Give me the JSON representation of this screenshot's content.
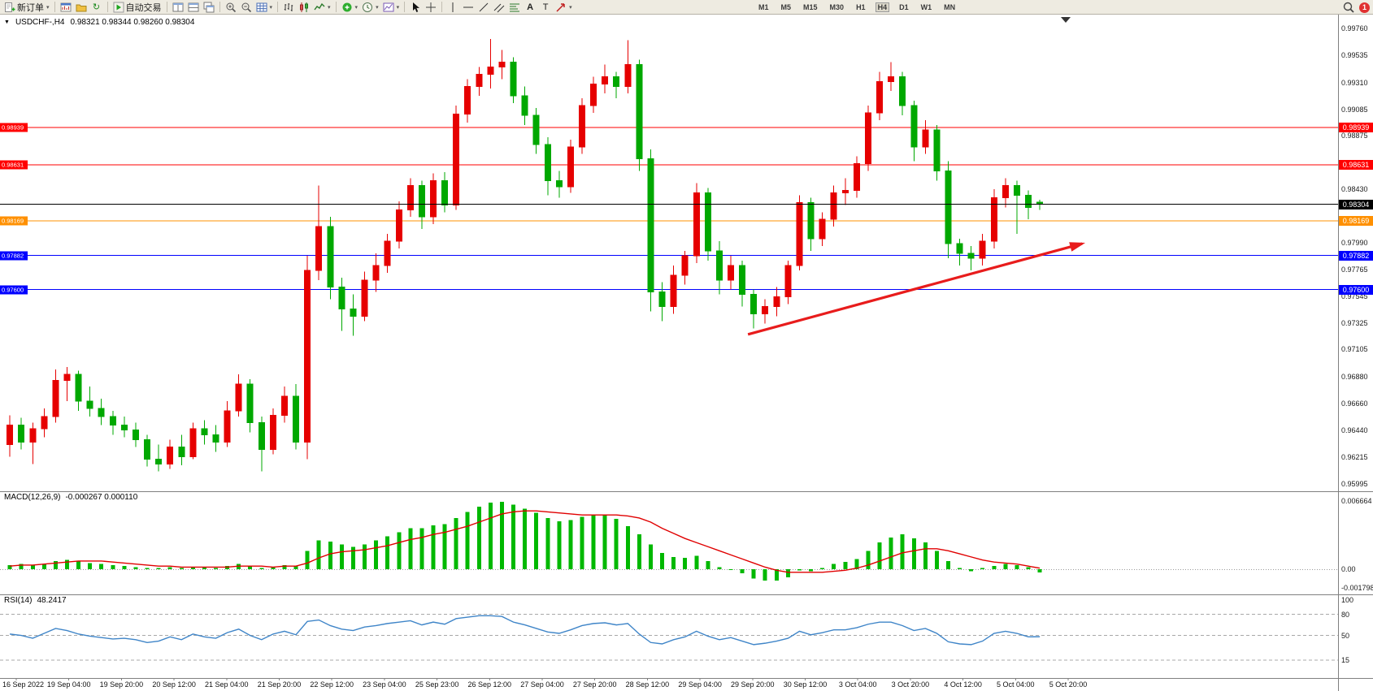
{
  "toolbar": {
    "groups": [
      {
        "items": [
          {
            "name": "new-order-button",
            "icon": "new-order",
            "label": "新订单",
            "dropdown": true
          }
        ]
      },
      {
        "items": [
          {
            "name": "chart-window-button",
            "icon": "chart-window"
          },
          {
            "name": "profiles-button",
            "icon": "folder"
          },
          {
            "name": "refresh-button",
            "icon": "cycle"
          }
        ]
      },
      {
        "items": [
          {
            "name": "autotrading-button",
            "icon": "play",
            "label": "自动交易"
          }
        ]
      },
      {
        "items": [
          {
            "name": "tile-horizontal-button",
            "icon": "tile-h"
          },
          {
            "name": "tile-vertical-button",
            "icon": "tile-v"
          },
          {
            "name": "cascade-windows-button",
            "icon": "cascade"
          }
        ]
      },
      {
        "items": [
          {
            "name": "zoom-in-button",
            "icon": "zoom-in"
          },
          {
            "name": "zoom-out-button",
            "icon": "zoom-out"
          },
          {
            "name": "data-window-button",
            "icon": "grid",
            "dropdown": true
          }
        ]
      },
      {
        "items": [
          {
            "name": "bar-chart-button",
            "icon": "bars"
          },
          {
            "name": "candlestick-chart-button",
            "icon": "candles"
          },
          {
            "name": "line-chart-button",
            "icon": "linechart",
            "dropdown": true
          }
        ]
      },
      {
        "items": [
          {
            "name": "indicators-button",
            "icon": "indicator",
            "dropdown": true
          },
          {
            "name": "periods-button",
            "icon": "clock",
            "dropdown": true
          },
          {
            "name": "templates-button",
            "icon": "template",
            "dropdown": true
          }
        ]
      },
      {
        "items": [
          {
            "name": "cursor-button",
            "icon": "cursor"
          },
          {
            "name": "crosshair-button",
            "icon": "crosshair"
          }
        ]
      },
      {
        "items": [
          {
            "name": "vertical-line-button",
            "icon": "vline"
          },
          {
            "name": "horizontal-line-button",
            "icon": "hline"
          },
          {
            "name": "trendline-button",
            "icon": "trendline"
          },
          {
            "name": "channel-button",
            "icon": "channel"
          },
          {
            "name": "fibonacci-button",
            "icon": "fibo"
          },
          {
            "name": "text-button",
            "icon": "text-a"
          },
          {
            "name": "label-button",
            "icon": "text-t"
          },
          {
            "name": "arrows-button",
            "icon": "arrow",
            "dropdown": true
          }
        ]
      }
    ],
    "timeframes": [
      {
        "label": "M1"
      },
      {
        "label": "M5"
      },
      {
        "label": "M15"
      },
      {
        "label": "M30"
      },
      {
        "label": "H1"
      },
      {
        "label": "H4"
      },
      {
        "label": "D1"
      },
      {
        "label": "W1"
      },
      {
        "label": "MN"
      }
    ],
    "active_timeframe": "H4",
    "right": {
      "search_icon": "search",
      "badge": "1"
    }
  },
  "chart": {
    "title": "USDCHF-,H4",
    "ohlc_text": "0.98321 0.98344 0.98260 0.98304"
  },
  "chart_data": {
    "type": "candlestick",
    "symbol": "USDCHF",
    "period": "H4",
    "bull_color": "#e60000",
    "bear_color": "#00a800",
    "candles": [
      [
        0.9632,
        0.9656,
        0.9622,
        0.9648
      ],
      [
        0.9648,
        0.9654,
        0.9628,
        0.9634
      ],
      [
        0.9634,
        0.965,
        0.9616,
        0.9645
      ],
      [
        0.9645,
        0.9662,
        0.9638,
        0.9655
      ],
      [
        0.9655,
        0.9694,
        0.965,
        0.9685
      ],
      [
        0.9685,
        0.9696,
        0.9668,
        0.969
      ],
      [
        0.969,
        0.9693,
        0.966,
        0.9668
      ],
      [
        0.9668,
        0.968,
        0.9655,
        0.9662
      ],
      [
        0.9662,
        0.967,
        0.9648,
        0.9655
      ],
      [
        0.9655,
        0.966,
        0.964,
        0.9648
      ],
      [
        0.9648,
        0.9655,
        0.9638,
        0.9644
      ],
      [
        0.9644,
        0.965,
        0.963,
        0.9636
      ],
      [
        0.9636,
        0.964,
        0.9614,
        0.962
      ],
      [
        0.962,
        0.9632,
        0.961,
        0.9616
      ],
      [
        0.9616,
        0.9636,
        0.9612,
        0.963
      ],
      [
        0.963,
        0.964,
        0.9615,
        0.9622
      ],
      [
        0.9622,
        0.965,
        0.962,
        0.9645
      ],
      [
        0.9645,
        0.9652,
        0.9632,
        0.964
      ],
      [
        0.964,
        0.9648,
        0.9626,
        0.9634
      ],
      [
        0.9634,
        0.9668,
        0.963,
        0.966
      ],
      [
        0.966,
        0.969,
        0.9655,
        0.9682
      ],
      [
        0.9682,
        0.9686,
        0.9642,
        0.965
      ],
      [
        0.965,
        0.9655,
        0.961,
        0.9628
      ],
      [
        0.9628,
        0.9662,
        0.9624,
        0.9656
      ],
      [
        0.9656,
        0.968,
        0.965,
        0.9672
      ],
      [
        0.9672,
        0.9682,
        0.9628,
        0.9634
      ],
      [
        0.9634,
        0.9788,
        0.962,
        0.9776
      ],
      [
        0.9776,
        0.9846,
        0.9768,
        0.9812
      ],
      [
        0.9812,
        0.982,
        0.9752,
        0.9762
      ],
      [
        0.9762,
        0.977,
        0.9726,
        0.9744
      ],
      [
        0.9744,
        0.9756,
        0.9722,
        0.9738
      ],
      [
        0.9738,
        0.9775,
        0.9734,
        0.9768
      ],
      [
        0.9768,
        0.979,
        0.9758,
        0.978
      ],
      [
        0.978,
        0.9806,
        0.9774,
        0.98
      ],
      [
        0.98,
        0.9833,
        0.9794,
        0.9826
      ],
      [
        0.9826,
        0.9852,
        0.982,
        0.9846
      ],
      [
        0.9846,
        0.985,
        0.981,
        0.982
      ],
      [
        0.982,
        0.9856,
        0.9814,
        0.985
      ],
      [
        0.985,
        0.9857,
        0.9824,
        0.983
      ],
      [
        0.983,
        0.9912,
        0.9826,
        0.9905
      ],
      [
        0.9905,
        0.9934,
        0.9898,
        0.9928
      ],
      [
        0.9928,
        0.9944,
        0.992,
        0.9938
      ],
      [
        0.9938,
        0.9967,
        0.9926,
        0.9944
      ],
      [
        0.9944,
        0.9958,
        0.9934,
        0.9948
      ],
      [
        0.9948,
        0.9952,
        0.9914,
        0.992
      ],
      [
        0.992,
        0.9928,
        0.9896,
        0.9904
      ],
      [
        0.9904,
        0.991,
        0.9872,
        0.988
      ],
      [
        0.988,
        0.9886,
        0.9838,
        0.985
      ],
      [
        0.985,
        0.9858,
        0.9836,
        0.9845
      ],
      [
        0.9845,
        0.9884,
        0.984,
        0.9878
      ],
      [
        0.9878,
        0.9918,
        0.9872,
        0.9912
      ],
      [
        0.9912,
        0.9936,
        0.9906,
        0.993
      ],
      [
        0.993,
        0.9946,
        0.9922,
        0.9936
      ],
      [
        0.9936,
        0.994,
        0.9918,
        0.9928
      ],
      [
        0.9928,
        0.9966,
        0.9922,
        0.9946
      ],
      [
        0.9946,
        0.995,
        0.9858,
        0.9868
      ],
      [
        0.9868,
        0.9876,
        0.9742,
        0.9758
      ],
      [
        0.9758,
        0.9766,
        0.9734,
        0.9746
      ],
      [
        0.9746,
        0.978,
        0.974,
        0.9772
      ],
      [
        0.9772,
        0.9792,
        0.9764,
        0.9788
      ],
      [
        0.9788,
        0.9848,
        0.9782,
        0.984
      ],
      [
        0.984,
        0.9844,
        0.9784,
        0.9792
      ],
      [
        0.9792,
        0.98,
        0.9756,
        0.9768
      ],
      [
        0.9768,
        0.9788,
        0.976,
        0.978
      ],
      [
        0.978,
        0.9784,
        0.9746,
        0.9756
      ],
      [
        0.9756,
        0.976,
        0.9728,
        0.974
      ],
      [
        0.974,
        0.9752,
        0.9732,
        0.9746
      ],
      [
        0.9746,
        0.9762,
        0.9738,
        0.9754
      ],
      [
        0.9754,
        0.9784,
        0.9748,
        0.978
      ],
      [
        0.978,
        0.9838,
        0.9776,
        0.9832
      ],
      [
        0.9832,
        0.9836,
        0.9792,
        0.9802
      ],
      [
        0.9802,
        0.9824,
        0.9796,
        0.9818
      ],
      [
        0.9818,
        0.9846,
        0.9812,
        0.984
      ],
      [
        0.984,
        0.9852,
        0.983,
        0.9842
      ],
      [
        0.9842,
        0.987,
        0.9836,
        0.9864
      ],
      [
        0.9864,
        0.9912,
        0.9858,
        0.9906
      ],
      [
        0.9906,
        0.994,
        0.99,
        0.9932
      ],
      [
        0.9932,
        0.9948,
        0.9924,
        0.9936
      ],
      [
        0.9936,
        0.994,
        0.9904,
        0.9912
      ],
      [
        0.9912,
        0.9916,
        0.9866,
        0.9878
      ],
      [
        0.9878,
        0.99,
        0.9872,
        0.9892
      ],
      [
        0.9892,
        0.9896,
        0.985,
        0.9858
      ],
      [
        0.9858,
        0.9866,
        0.9786,
        0.9798
      ],
      [
        0.9798,
        0.9802,
        0.978,
        0.979
      ],
      [
        0.979,
        0.9796,
        0.9776,
        0.9786
      ],
      [
        0.9786,
        0.9806,
        0.978,
        0.98
      ],
      [
        0.98,
        0.9843,
        0.9794,
        0.9836
      ],
      [
        0.9836,
        0.9852,
        0.9828,
        0.9846
      ],
      [
        0.9846,
        0.985,
        0.9806,
        0.9838
      ],
      [
        0.9838,
        0.9842,
        0.9818,
        0.9828
      ],
      [
        0.98321,
        0.98344,
        0.9826,
        0.98304
      ]
    ],
    "hlines": [
      {
        "price": 0.98939,
        "label": "0.98939",
        "color": "#ff0000"
      },
      {
        "price": 0.98631,
        "label": "0.98631",
        "color": "#ff0000"
      },
      {
        "price": 0.98169,
        "label": "0.98169",
        "color": "#ff9000"
      },
      {
        "price": 0.97882,
        "label": "0.97882",
        "color": "#0000ff"
      },
      {
        "price": 0.976,
        "label": "0.97600",
        "color": "#0000ff"
      }
    ],
    "current_price": {
      "price": 0.98304,
      "label": "0.98304",
      "color": "#000000"
    },
    "price_axis": {
      "labels": [
        "0.99760",
        "0.99535",
        "0.99310",
        "0.99085",
        "0.98875",
        "0.98430",
        "0.97990",
        "0.97765",
        "0.97545",
        "0.97325",
        "0.97105",
        "0.96880",
        "0.96660",
        "0.96440",
        "0.96215",
        "0.95995"
      ]
    },
    "macd": {
      "label": "MACD(12,26,9)",
      "values_text": "-0.000267 0.000110",
      "color_histogram": "#00b800",
      "color_signal": "#e00000",
      "scale_labels": [
        "0.006664",
        "0.00",
        "-0.001798"
      ],
      "histogram": [
        0.0004,
        0.0005,
        0.0004,
        0.0005,
        0.0008,
        0.0009,
        0.0008,
        0.0006,
        0.0005,
        0.0004,
        0.0003,
        0.0002,
        0.0001,
        0.0001,
        0.0002,
        0.0001,
        0.0002,
        0.0002,
        0.0001,
        0.0003,
        0.0005,
        0.0003,
        0.0001,
        0.0002,
        0.0004,
        0.0003,
        0.0018,
        0.0028,
        0.0027,
        0.0024,
        0.0022,
        0.0024,
        0.0028,
        0.0032,
        0.0036,
        0.004,
        0.004,
        0.0043,
        0.0044,
        0.005,
        0.0056,
        0.0061,
        0.0065,
        0.0066,
        0.0063,
        0.0059,
        0.0055,
        0.005,
        0.0047,
        0.0048,
        0.0051,
        0.0053,
        0.0053,
        0.0049,
        0.0042,
        0.0034,
        0.0024,
        0.0016,
        0.0012,
        0.0011,
        0.0013,
        0.0008,
        0.0002,
        0.0,
        -0.0004,
        -0.0009,
        -0.0011,
        -0.0011,
        -0.0008,
        -0.0001,
        -0.0002,
        0.0001,
        0.0005,
        0.0007,
        0.001,
        0.0018,
        0.0026,
        0.0031,
        0.0034,
        0.003,
        0.0026,
        0.0018,
        0.0008,
        0.0001,
        -0.0002,
        0.0001,
        0.0003,
        0.0005,
        0.0004,
        0.0002,
        -0.0003
      ],
      "signal": [
        0.0003,
        0.0004,
        0.0004,
        0.0005,
        0.0006,
        0.0007,
        0.0008,
        0.0008,
        0.0008,
        0.0007,
        0.0006,
        0.0005,
        0.0004,
        0.0003,
        0.0003,
        0.0002,
        0.0002,
        0.0002,
        0.0002,
        0.0002,
        0.0003,
        0.0003,
        0.0003,
        0.0002,
        0.0003,
        0.0003,
        0.0006,
        0.0011,
        0.0015,
        0.0017,
        0.0018,
        0.0019,
        0.0021,
        0.0023,
        0.0026,
        0.0029,
        0.0031,
        0.0034,
        0.0036,
        0.0039,
        0.0042,
        0.0046,
        0.005,
        0.0054,
        0.0056,
        0.0057,
        0.0057,
        0.0056,
        0.0055,
        0.0054,
        0.0053,
        0.0053,
        0.0053,
        0.0053,
        0.0052,
        0.005,
        0.0046,
        0.004,
        0.0035,
        0.003,
        0.0026,
        0.0022,
        0.0018,
        0.0014,
        0.001,
        0.0006,
        0.0002,
        -0.0001,
        -0.0003,
        -0.0003,
        -0.0003,
        -0.0003,
        -0.0002,
        -0.0001,
        0.0001,
        0.0004,
        0.0008,
        0.0012,
        0.0016,
        0.0018,
        0.002,
        0.002,
        0.0018,
        0.0015,
        0.0012,
        0.0009,
        0.0007,
        0.0006,
        0.0005,
        0.0003,
        0.0001
      ]
    },
    "rsi": {
      "label": "RSI(14)",
      "value_text": "48.2417",
      "color": "#3f85c8",
      "levels": [
        80,
        50,
        15
      ],
      "scale_labels": [
        "100",
        "80",
        "50",
        "15"
      ],
      "values": [
        52,
        50,
        46,
        53,
        60,
        57,
        52,
        49,
        47,
        45,
        46,
        44,
        40,
        42,
        48,
        44,
        52,
        48,
        46,
        54,
        59,
        50,
        44,
        52,
        56,
        51,
        70,
        72,
        64,
        59,
        57,
        62,
        64,
        67,
        69,
        71,
        65,
        69,
        66,
        74,
        76,
        78,
        78,
        77,
        69,
        65,
        60,
        55,
        53,
        58,
        64,
        67,
        68,
        65,
        67,
        52,
        40,
        38,
        44,
        48,
        56,
        49,
        44,
        47,
        42,
        37,
        39,
        42,
        46,
        56,
        51,
        54,
        58,
        58,
        61,
        66,
        69,
        69,
        64,
        57,
        60,
        53,
        41,
        38,
        37,
        42,
        53,
        56,
        53,
        48,
        48.24
      ]
    },
    "time_axis": {
      "labels": [
        "16 Sep 2022",
        "19 Sep 04:00",
        "19 Sep 20:00",
        "20 Sep 12:00",
        "21 Sep 04:00",
        "21 Sep 20:00",
        "22 Sep 12:00",
        "23 Sep 04:00",
        "25 Sep 23:00",
        "26 Sep 12:00",
        "27 Sep 04:00",
        "27 Sep 20:00",
        "28 Sep 12:00",
        "29 Sep 04:00",
        "29 Sep 20:00",
        "30 Sep 12:00",
        "3 Oct 04:00",
        "3 Oct 20:00",
        "4 Oct 12:00",
        "5 Oct 04:00",
        "5 Oct 20:00"
      ]
    },
    "trend_arrow": {
      "bar1": 64.5,
      "price1": 0.9723,
      "bar2": 93.7,
      "price2": 0.9798,
      "color": "#e81c1c"
    }
  }
}
